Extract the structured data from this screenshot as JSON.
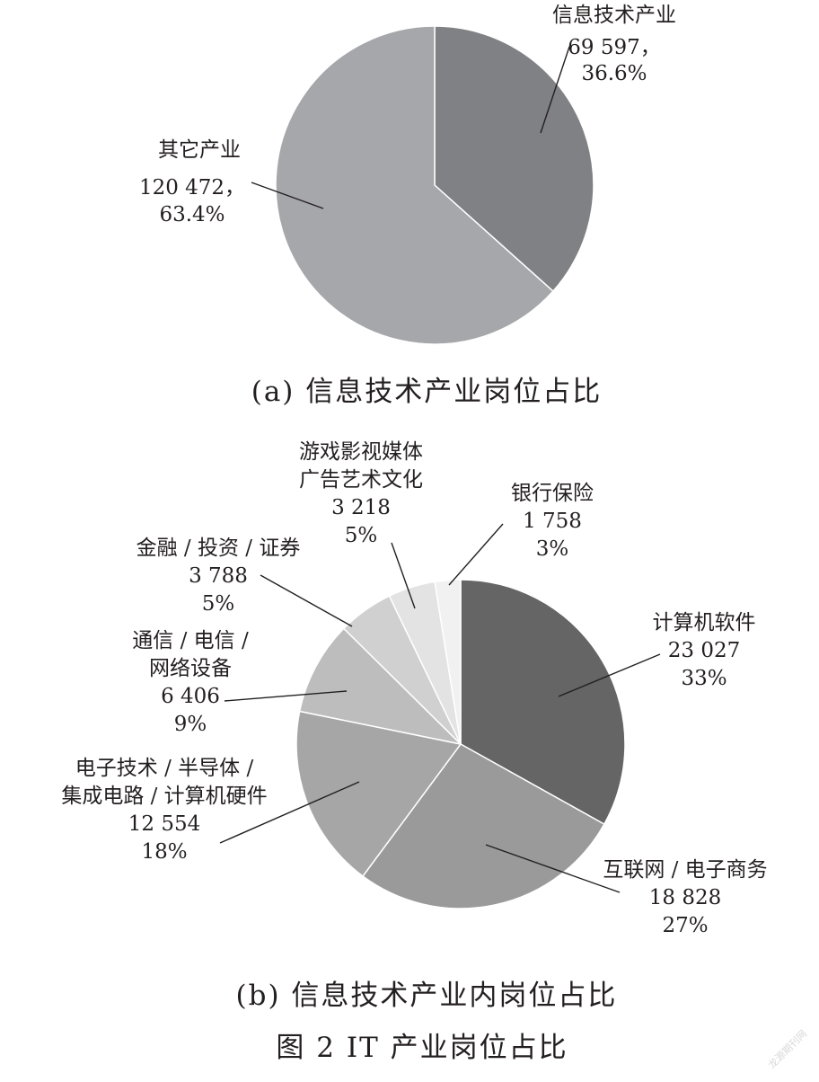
{
  "figure_title": "图 2   IT 产业岗位占比",
  "watermark": "龙源期刊网",
  "chart_data": [
    {
      "type": "pie",
      "caption": "(a) 信息技术产业岗位占比",
      "slices": [
        {
          "name": "信息技术产业",
          "value": 69597,
          "value_label": "69 597，",
          "percent_label": "36.6%",
          "percent": 36.6,
          "color": "#808184"
        },
        {
          "name": "其它产业",
          "value": 120472,
          "value_label": "120 472，",
          "percent_label": "63.4%",
          "percent": 63.4,
          "color": "#a6a7aa"
        }
      ]
    },
    {
      "type": "pie",
      "caption": "(b) 信息技术产业内岗位占比",
      "slices": [
        {
          "name_lines": [
            "计算机软件"
          ],
          "value": 23027,
          "value_label": "23 027",
          "percent_label": "33%",
          "percent": 33,
          "color": "#656565"
        },
        {
          "name_lines": [
            "互联网 / 电子商务"
          ],
          "value": 18828,
          "value_label": "18 828",
          "percent_label": "27%",
          "percent": 27,
          "color": "#9a9a9a"
        },
        {
          "name_lines": [
            "电子技术 / 半导体 /",
            "集成电路 / 计算机硬件"
          ],
          "value": 12554,
          "value_label": "12 554",
          "percent_label": "18%",
          "percent": 18,
          "color": "#a6a6a6"
        },
        {
          "name_lines": [
            "通信 / 电信 /",
            "网络设备"
          ],
          "value": 6406,
          "value_label": "6 406",
          "percent_label": "9%",
          "percent": 9,
          "color": "#bdbdbd"
        },
        {
          "name_lines": [
            "金融 / 投资 / 证券"
          ],
          "value": 3788,
          "value_label": "3 788",
          "percent_label": "5%",
          "percent": 5,
          "color": "#d0d0d0"
        },
        {
          "name_lines": [
            "游戏影视媒体",
            "广告艺术文化"
          ],
          "value": 3218,
          "value_label": "3 218",
          "percent_label": "5%",
          "percent": 5,
          "color": "#e3e3e3"
        },
        {
          "name_lines": [
            "银行保险"
          ],
          "value": 1758,
          "value_label": "1 758",
          "percent_label": "3%",
          "percent": 3,
          "color": "#f1f1f1"
        }
      ]
    }
  ]
}
